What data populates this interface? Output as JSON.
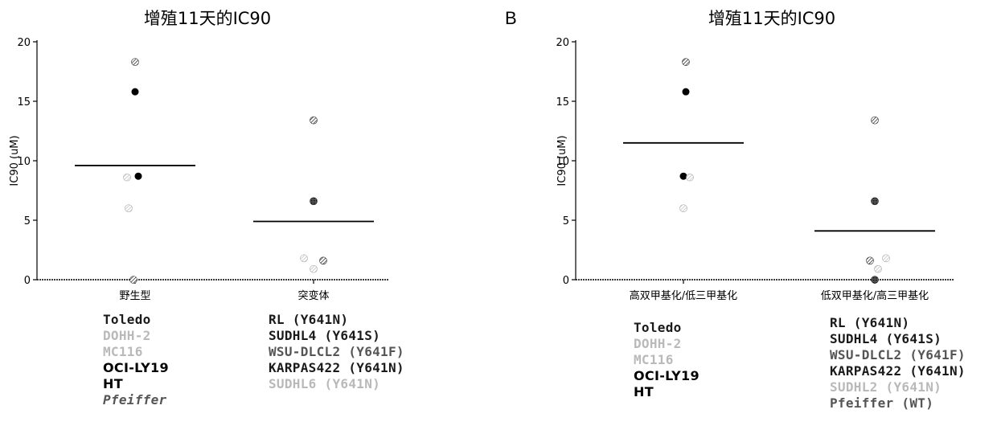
{
  "chart_data": [
    {
      "type": "scatter",
      "panel_label": "",
      "title": "增殖11天的IC90",
      "ylabel": "IC90 (uM)",
      "ylim": [
        0,
        20
      ],
      "yticks": [
        0,
        5,
        10,
        15,
        20
      ],
      "categories": [
        "野生型",
        "突变体"
      ],
      "groups": [
        {
          "category": "野生型",
          "mean": 9.6,
          "points": [
            {
              "y": 18.3,
              "style": "hatched"
            },
            {
              "y": 15.8,
              "style": "solid"
            },
            {
              "y": 8.7,
              "style": "solid"
            },
            {
              "y": 8.6,
              "style": "light"
            },
            {
              "y": 6.0,
              "style": "light"
            },
            {
              "y": 0.0,
              "style": "hatched"
            }
          ],
          "legend": [
            {
              "text": "Toledo",
              "style": "dark"
            },
            {
              "text": "DOHH-2",
              "style": "faint"
            },
            {
              "text": "MC116",
              "style": "faint"
            },
            {
              "text": "OCI-LY19",
              "style": "black"
            },
            {
              "text": "HT",
              "style": "black"
            },
            {
              "text": "Pfeiffer",
              "style": "italic"
            }
          ]
        },
        {
          "category": "突变体",
          "mean": 4.9,
          "points": [
            {
              "y": 13.4,
              "style": "hatched"
            },
            {
              "y": 6.6,
              "style": "cross"
            },
            {
              "y": 1.8,
              "style": "light"
            },
            {
              "y": 1.6,
              "style": "hatched"
            },
            {
              "y": 0.9,
              "style": "light"
            }
          ],
          "legend": [
            {
              "text": "RL (Y641N)",
              "style": "dark"
            },
            {
              "text": "SUDHL4 (Y641S)",
              "style": "dark"
            },
            {
              "text": "WSU-DLCL2 (Y641F)",
              "style": "mid"
            },
            {
              "text": "KARPAS422 (Y641N)",
              "style": "dark"
            },
            {
              "text": "SUDHL6 (Y641N)",
              "style": "faint"
            }
          ]
        }
      ]
    },
    {
      "type": "scatter",
      "panel_label": "B",
      "title": "增殖11天的IC90",
      "ylabel": "IC90 (uM)",
      "ylim": [
        0,
        20
      ],
      "yticks": [
        0,
        5,
        10,
        15,
        20
      ],
      "categories": [
        "高双甲基化/低三甲基化",
        "低双甲基化/高三甲基化"
      ],
      "groups": [
        {
          "category": "高双甲基化/低三甲基化",
          "mean": 11.5,
          "points": [
            {
              "y": 18.3,
              "style": "hatched"
            },
            {
              "y": 15.8,
              "style": "solid"
            },
            {
              "y": 8.7,
              "style": "solid"
            },
            {
              "y": 8.6,
              "style": "light"
            },
            {
              "y": 6.0,
              "style": "light"
            }
          ],
          "legend": [
            {
              "text": "Toledo",
              "style": "dark"
            },
            {
              "text": "DOHH-2",
              "style": "faint"
            },
            {
              "text": "MC116",
              "style": "faint"
            },
            {
              "text": "OCI-LY19",
              "style": "black"
            },
            {
              "text": "HT",
              "style": "black"
            }
          ]
        },
        {
          "category": "低双甲基化/高三甲基化",
          "mean": 4.1,
          "points": [
            {
              "y": 13.4,
              "style": "hatched"
            },
            {
              "y": 6.6,
              "style": "cross"
            },
            {
              "y": 1.8,
              "style": "light"
            },
            {
              "y": 1.6,
              "style": "hatched"
            },
            {
              "y": 0.9,
              "style": "light"
            },
            {
              "y": 0.0,
              "style": "cross"
            }
          ],
          "legend": [
            {
              "text": "RL (Y641N)",
              "style": "dark"
            },
            {
              "text": "SUDHL4 (Y641S)",
              "style": "dark"
            },
            {
              "text": "WSU-DLCL2 (Y641F)",
              "style": "mid"
            },
            {
              "text": "KARPAS422 (Y641N)",
              "style": "dark"
            },
            {
              "text": "SUDHL2 (Y641N)",
              "style": "faint"
            },
            {
              "text": "Pfeiffer (WT)",
              "style": "mid"
            }
          ]
        }
      ]
    }
  ]
}
